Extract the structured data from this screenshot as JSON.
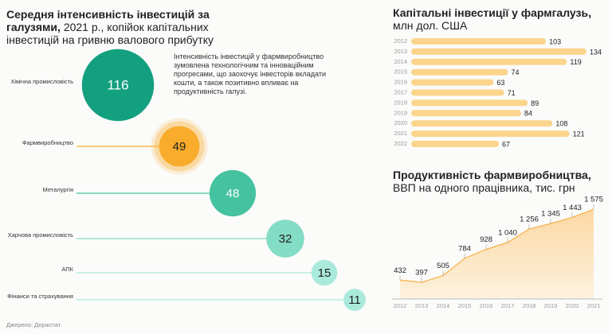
{
  "chart_data": [
    {
      "type": "bubble",
      "title": "Середня інтенсивність інвестицій за галузями,",
      "subtitle": "2021 р., копійок капітальних інвестицій на гривню валового прибутку",
      "annotation": "Інтенсивність інвестицій у фармвиробництво зумовлена технологічним та інноваційним прогресами, що заохочує інвесторів вкладати кошти, а також позитивно впливає на продуктивність галузі.",
      "categories": [
        "Хімічна промисловість",
        "Фармвиробництво",
        "Металургія",
        "Харчова промисловість",
        "АПК",
        "Фінанси та страхування"
      ],
      "values": [
        116,
        49,
        48,
        32,
        15,
        11
      ],
      "colors": [
        "#13a07f",
        "#f9ac2c",
        "#45c29f",
        "#83dcc4",
        "#a9eadb",
        "#a9eadb"
      ],
      "source": "Джерело: Держстат"
    },
    {
      "type": "hbar",
      "title": "Капітальні інвестиції у фармгалузь,",
      "subtitle": "млн дол. США",
      "categories": [
        "2012",
        "2013",
        "2014",
        "2015",
        "2016",
        "2017",
        "2018",
        "2019",
        "2020",
        "2021",
        "2022"
      ],
      "values": [
        103,
        134,
        119,
        74,
        63,
        71,
        89,
        84,
        108,
        121,
        67
      ],
      "color": "#fcd58c"
    },
    {
      "type": "area",
      "title": "Продуктивність фармвиробництва,",
      "subtitle": "ВВП на одного працівника, тис. грн",
      "categories": [
        "2012",
        "2013",
        "2014",
        "2015",
        "2016",
        "2017",
        "2018",
        "2019",
        "2020",
        "2021"
      ],
      "values": [
        432,
        397,
        505,
        784,
        928,
        1040,
        1256,
        1345,
        1443,
        1575
      ],
      "value_labels": [
        "432",
        "397",
        "505",
        "784",
        "928",
        "1 040",
        "1 256",
        "1 345",
        "1 443",
        "1 575"
      ],
      "color": "#f7b95e"
    }
  ]
}
